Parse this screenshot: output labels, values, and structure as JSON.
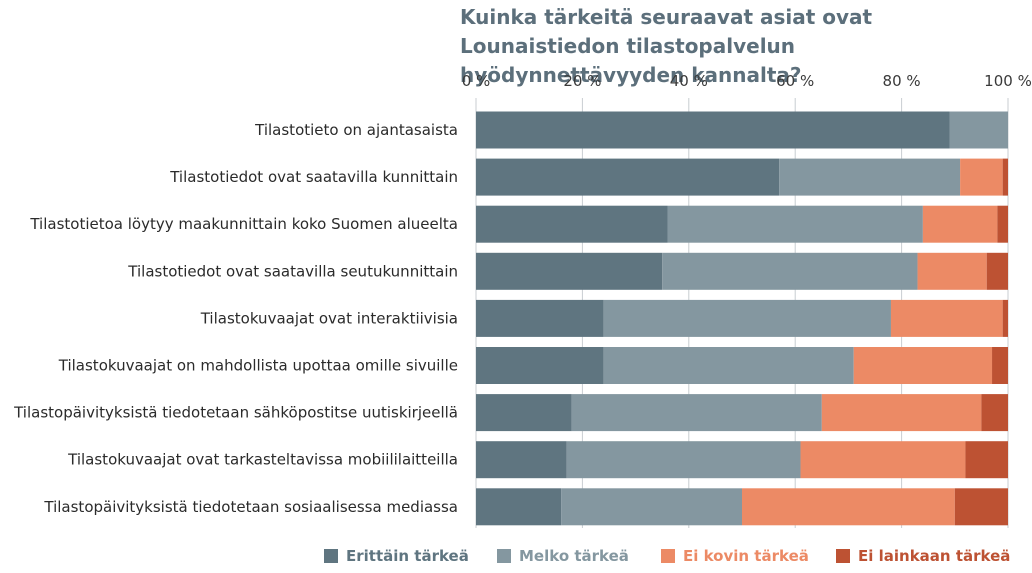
{
  "chart_data": {
    "type": "bar",
    "orientation": "horizontal",
    "stacked": true,
    "title": "Kuinka tärkeitä seuraavat asiat ovat Lounaistiedon tilastopalvelun hyödynnettävyyden kannalta?",
    "xlim": [
      0,
      100
    ],
    "x_ticks": [
      "0 %",
      "20 %",
      "40 %",
      "60 %",
      "80 %",
      "100 %"
    ],
    "x_tick_values": [
      0,
      20,
      40,
      60,
      80,
      100
    ],
    "x_axis_position": "top",
    "grid": true,
    "legend_position": "bottom",
    "categories": [
      "Tilastotieto on ajantasaista",
      "Tilastotiedot ovat saatavilla kunnittain",
      "Tilastotietoa löytyy maakunnittain koko Suomen alueelta",
      "Tilastotiedot ovat saatavilla seutukunnittain",
      "Tilastokuvaajat ovat interaktiivisia",
      "Tilastokuvaajat on mahdollista upottaa omille sivuille",
      "Tilastopäivityksistä tiedotetaan sähköpostitse uutiskirjeellä",
      "Tilastokuvaajat ovat tarkasteltavissa mobiililaitteilla",
      "Tilastopäivityksistä tiedotetaan sosiaalisessa mediassa"
    ],
    "series": [
      {
        "name": "Erittäin tärkeä",
        "color": "#5f7580",
        "values": [
          89,
          57,
          36,
          35,
          24,
          24,
          18,
          17,
          16
        ]
      },
      {
        "name": "Melko tärkeä",
        "color": "#8497a0",
        "values": [
          11,
          34,
          48,
          48,
          54,
          47,
          47,
          44,
          34
        ]
      },
      {
        "name": "Ei kovin tärkeä",
        "color": "#ec8a65",
        "values": [
          0,
          8,
          14,
          13,
          21,
          26,
          30,
          31,
          40
        ]
      },
      {
        "name": "Ei lainkaan tärkeä",
        "color": "#bd5233",
        "values": [
          0,
          1,
          2,
          4,
          1,
          3,
          5,
          8,
          10
        ]
      }
    ],
    "legend_text_colors": [
      "#5f7580",
      "#8497a0",
      "#ec8a65",
      "#bd5233"
    ]
  }
}
